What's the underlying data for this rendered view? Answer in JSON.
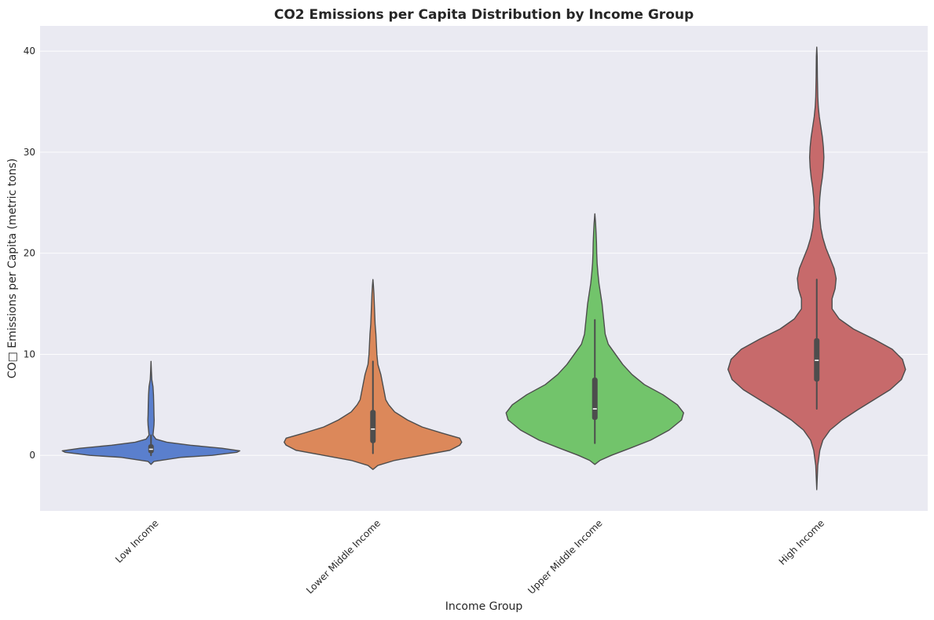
{
  "chart_data": {
    "type": "violin",
    "title": "CO2 Emissions per Capita Distribution by Income Group",
    "xlabel": "Income Group",
    "ylabel": "CO□ Emissions per Capita (metric tons)",
    "ylim": [
      -5.5,
      42.5
    ],
    "yticks": [
      0,
      10,
      20,
      30,
      40
    ],
    "grid": true,
    "background": "#eaeaf2",
    "categories": [
      "Low Income",
      "Lower Middle Income",
      "Upper Middle Income",
      "High Income"
    ],
    "colors": [
      "#5a7fcd",
      "#dc885a",
      "#72c46b",
      "#c76a6b"
    ],
    "line_color": "#4d4d4d",
    "violins": [
      {
        "category": "Low Income",
        "ymin": -0.9,
        "ymax": 9.3,
        "box": {
          "q1": 0.2,
          "median": 0.6,
          "q3": 1.1,
          "whisker_low": 0.0,
          "whisker_high": 2.0
        },
        "profile": [
          [
            -0.9,
            0.0
          ],
          [
            -0.6,
            0.03
          ],
          [
            -0.2,
            0.3
          ],
          [
            0.0,
            0.62
          ],
          [
            0.3,
            0.87
          ],
          [
            0.45,
            0.9
          ],
          [
            0.7,
            0.72
          ],
          [
            1.0,
            0.4
          ],
          [
            1.3,
            0.16
          ],
          [
            1.6,
            0.05
          ],
          [
            2.0,
            0.02
          ],
          [
            2.5,
            0.025
          ],
          [
            3.0,
            0.03
          ],
          [
            3.5,
            0.032
          ],
          [
            4.0,
            0.03
          ],
          [
            5.0,
            0.028
          ],
          [
            6.0,
            0.025
          ],
          [
            6.8,
            0.02
          ],
          [
            7.5,
            0.008
          ],
          [
            8.3,
            0.004
          ],
          [
            9.3,
            0.0
          ]
        ]
      },
      {
        "category": "Lower Middle Income",
        "ymin": -1.4,
        "ymax": 17.4,
        "box": {
          "q1": 1.2,
          "median": 2.6,
          "q3": 4.5,
          "whisker_low": 0.2,
          "whisker_high": 9.3
        },
        "profile": [
          [
            -1.4,
            0.0
          ],
          [
            -1.0,
            0.05
          ],
          [
            -0.5,
            0.22
          ],
          [
            0.0,
            0.5
          ],
          [
            0.5,
            0.78
          ],
          [
            1.0,
            0.88
          ],
          [
            1.3,
            0.9
          ],
          [
            1.7,
            0.88
          ],
          [
            2.2,
            0.7
          ],
          [
            2.8,
            0.5
          ],
          [
            3.5,
            0.35
          ],
          [
            4.3,
            0.22
          ],
          [
            5.0,
            0.16
          ],
          [
            5.5,
            0.13
          ],
          [
            6.0,
            0.12
          ],
          [
            7.0,
            0.1
          ],
          [
            8.0,
            0.08
          ],
          [
            9.0,
            0.05
          ],
          [
            10.0,
            0.04
          ],
          [
            11.0,
            0.035
          ],
          [
            12.0,
            0.03
          ],
          [
            13.0,
            0.022
          ],
          [
            14.0,
            0.018
          ],
          [
            15.0,
            0.014
          ],
          [
            16.0,
            0.01
          ],
          [
            16.8,
            0.005
          ],
          [
            17.4,
            0.0
          ]
        ]
      },
      {
        "category": "Upper Middle Income",
        "ymin": -0.9,
        "ymax": 23.9,
        "box": {
          "q1": 3.5,
          "median": 4.6,
          "q3": 7.7,
          "whisker_low": 1.2,
          "whisker_high": 13.4
        },
        "profile": [
          [
            -0.9,
            0.0
          ],
          [
            -0.5,
            0.05
          ],
          [
            0.0,
            0.16
          ],
          [
            0.7,
            0.34
          ],
          [
            1.5,
            0.54
          ],
          [
            2.5,
            0.72
          ],
          [
            3.5,
            0.84
          ],
          [
            4.2,
            0.86
          ],
          [
            5.0,
            0.8
          ],
          [
            6.0,
            0.66
          ],
          [
            7.0,
            0.48
          ],
          [
            8.0,
            0.36
          ],
          [
            9.0,
            0.27
          ],
          [
            10.0,
            0.2
          ],
          [
            11.0,
            0.13
          ],
          [
            12.0,
            0.1
          ],
          [
            13.0,
            0.09
          ],
          [
            14.0,
            0.08
          ],
          [
            15.0,
            0.07
          ],
          [
            16.0,
            0.055
          ],
          [
            17.0,
            0.04
          ],
          [
            18.0,
            0.03
          ],
          [
            19.0,
            0.022
          ],
          [
            20.0,
            0.018
          ],
          [
            21.0,
            0.016
          ],
          [
            22.0,
            0.012
          ],
          [
            23.0,
            0.007
          ],
          [
            23.9,
            0.0
          ]
        ]
      },
      {
        "category": "High Income",
        "ymin": -3.4,
        "ymax": 40.4,
        "box": {
          "q1": 7.3,
          "median": 9.4,
          "q3": 11.6,
          "whisker_low": 4.6,
          "whisker_high": 17.4
        },
        "profile": [
          [
            -3.4,
            0.0
          ],
          [
            -1.0,
            0.01
          ],
          [
            0.5,
            0.03
          ],
          [
            1.5,
            0.06
          ],
          [
            2.5,
            0.13
          ],
          [
            3.5,
            0.25
          ],
          [
            4.5,
            0.4
          ],
          [
            5.5,
            0.56
          ],
          [
            6.5,
            0.72
          ],
          [
            7.5,
            0.83
          ],
          [
            8.5,
            0.87
          ],
          [
            9.5,
            0.84
          ],
          [
            10.5,
            0.74
          ],
          [
            11.5,
            0.56
          ],
          [
            12.5,
            0.36
          ],
          [
            13.5,
            0.22
          ],
          [
            14.5,
            0.15
          ],
          [
            15.5,
            0.15
          ],
          [
            16.5,
            0.18
          ],
          [
            17.5,
            0.19
          ],
          [
            18.5,
            0.17
          ],
          [
            19.5,
            0.13
          ],
          [
            20.5,
            0.09
          ],
          [
            21.5,
            0.06
          ],
          [
            22.5,
            0.04
          ],
          [
            23.5,
            0.03
          ],
          [
            24.5,
            0.025
          ],
          [
            25.5,
            0.03
          ],
          [
            26.5,
            0.04
          ],
          [
            27.5,
            0.055
          ],
          [
            28.5,
            0.065
          ],
          [
            29.5,
            0.07
          ],
          [
            30.5,
            0.065
          ],
          [
            31.5,
            0.055
          ],
          [
            32.5,
            0.04
          ],
          [
            33.5,
            0.025
          ],
          [
            34.5,
            0.015
          ],
          [
            35.5,
            0.01
          ],
          [
            36.5,
            0.008
          ],
          [
            37.5,
            0.006
          ],
          [
            38.5,
            0.005
          ],
          [
            39.5,
            0.004
          ],
          [
            40.4,
            0.0
          ]
        ]
      }
    ]
  }
}
